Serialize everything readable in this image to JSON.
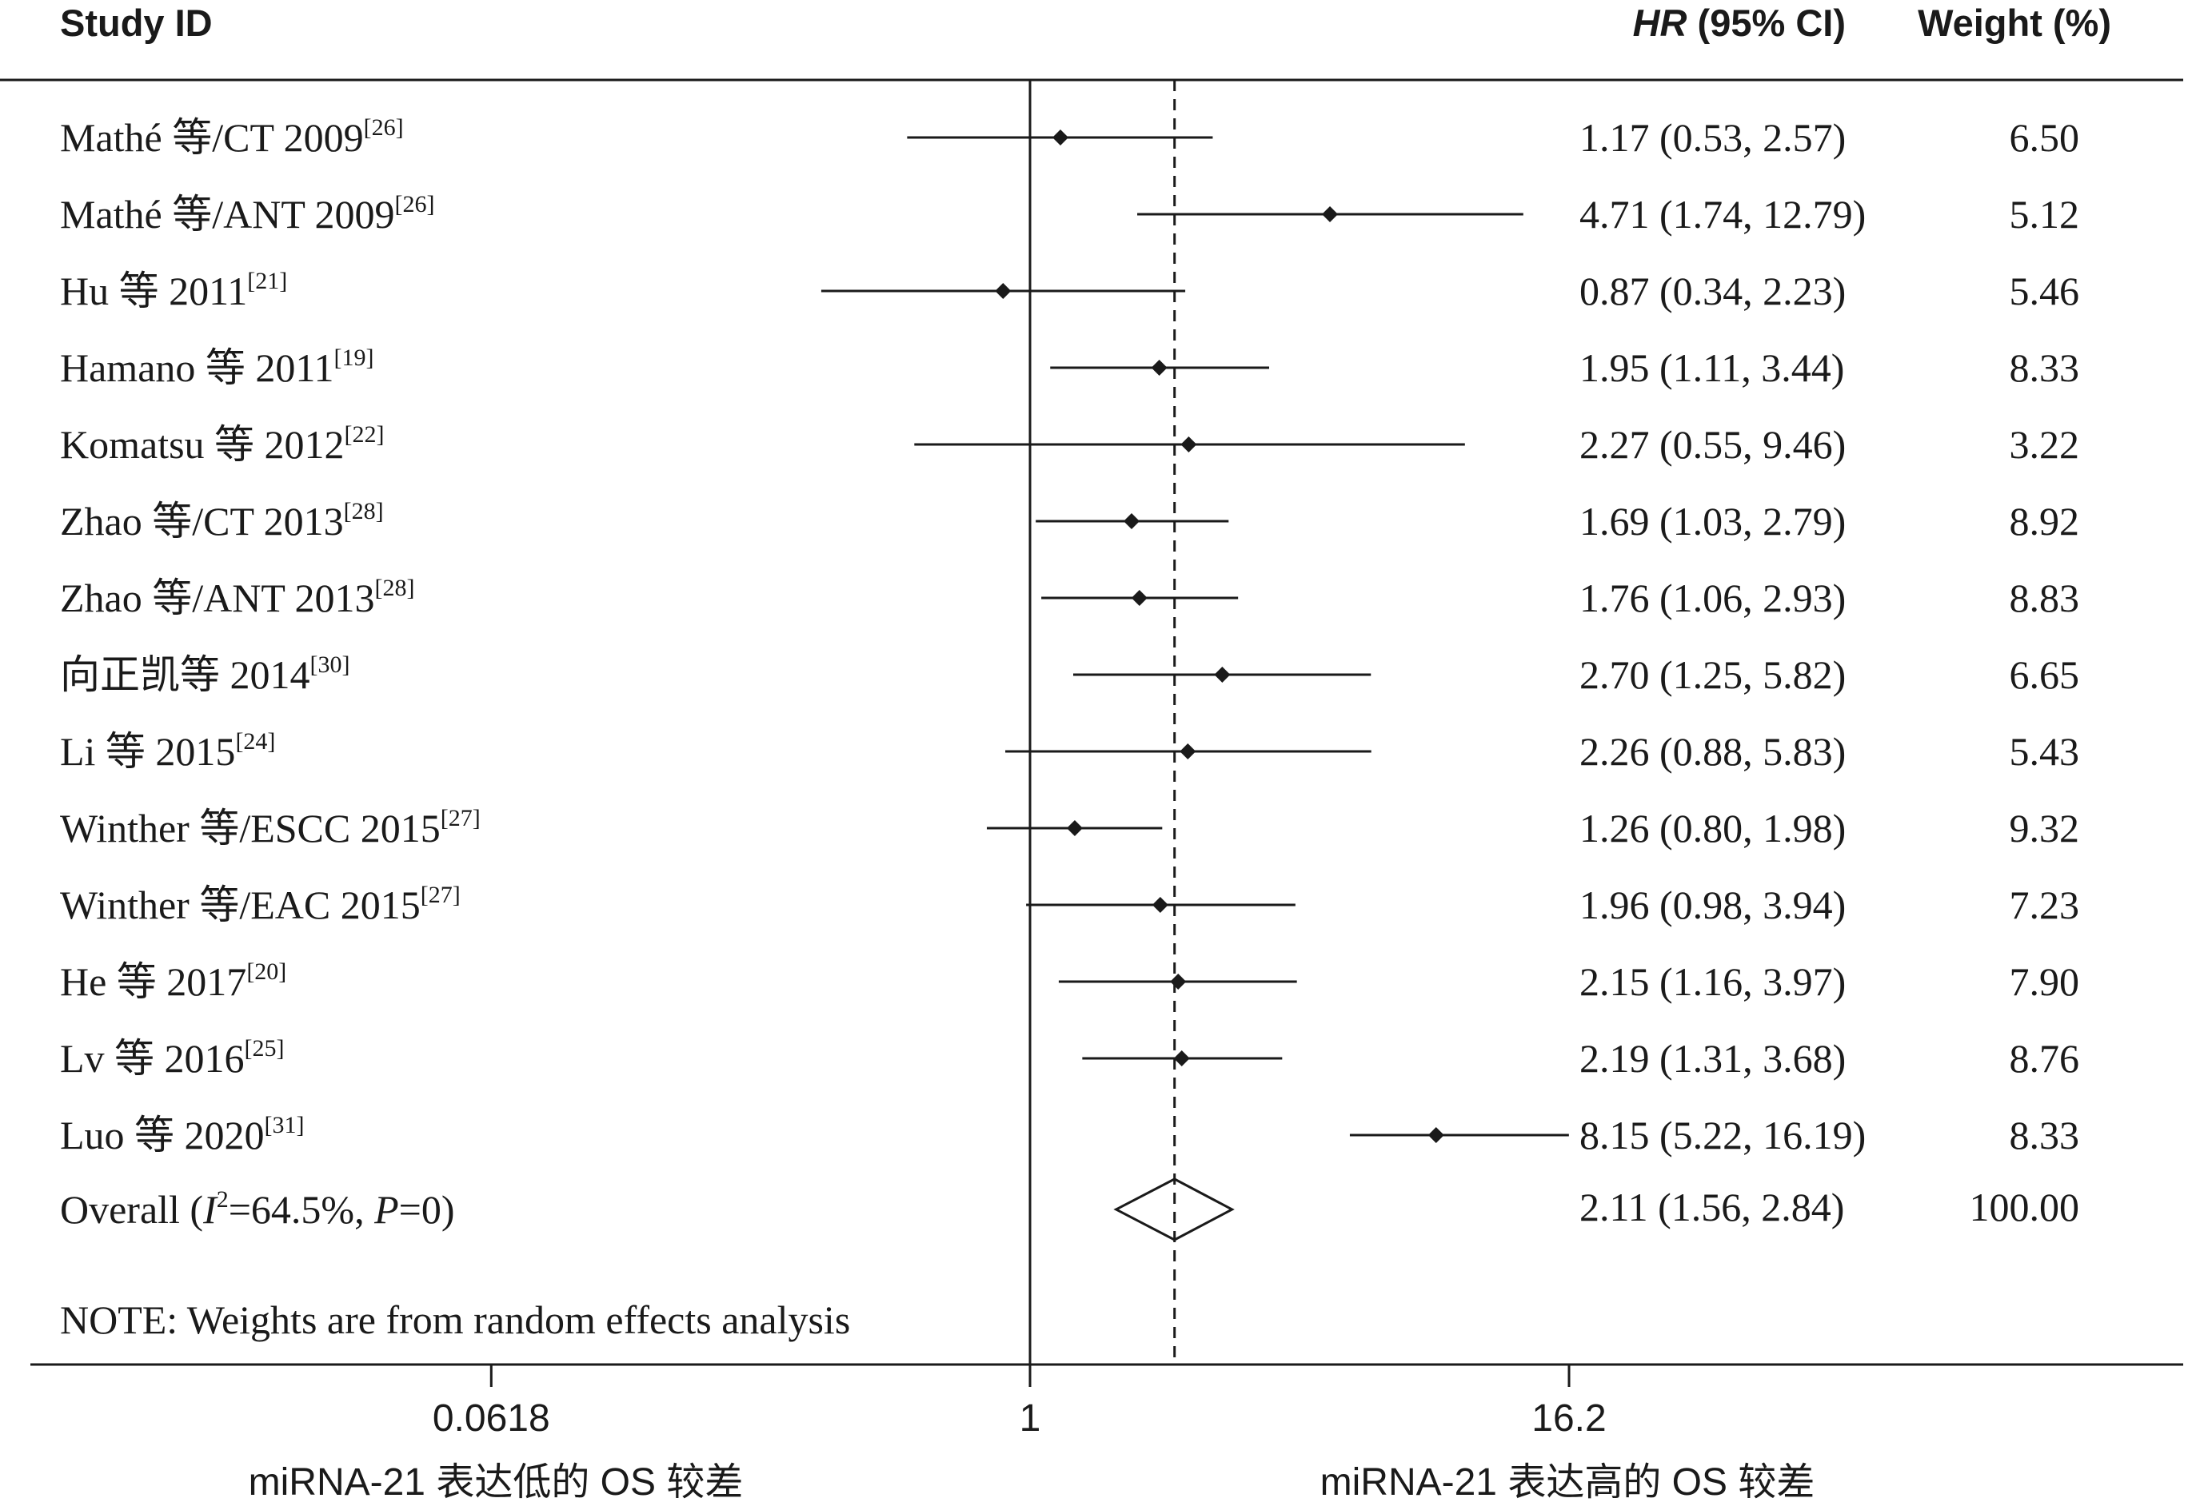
{
  "header": {
    "study_id": "Study ID",
    "hr_label_italic": "HR",
    "hr_label_rest": " (95% CI)",
    "weight_label": "Weight (%)"
  },
  "chart_data": {
    "type": "forest",
    "x_scale": "log",
    "x_ticks": [
      {
        "value": 0.0618,
        "label": "0.0618"
      },
      {
        "value": 1,
        "label": "1"
      },
      {
        "value": 16.2,
        "label": "16.2"
      }
    ],
    "null_line": 1,
    "studies": [
      {
        "name": "Mathé 等/CT 2009",
        "ref": "[26]",
        "hr": 1.17,
        "lo": 0.53,
        "hi": 2.57,
        "hr_text": "1.17 (0.53, 2.57)",
        "weight": "6.50"
      },
      {
        "name": "Mathé 等/ANT 2009",
        "ref": "[26]",
        "hr": 4.71,
        "lo": 1.74,
        "hi": 12.79,
        "hr_text": "4.71 (1.74, 12.79)",
        "weight": "5.12"
      },
      {
        "name": "Hu 等 2011",
        "ref": "[21]",
        "hr": 0.87,
        "lo": 0.34,
        "hi": 2.23,
        "hr_text": "0.87 (0.34, 2.23)",
        "weight": "5.46"
      },
      {
        "name": "Hamano 等 2011",
        "ref": "[19]",
        "hr": 1.95,
        "lo": 1.11,
        "hi": 3.44,
        "hr_text": "1.95 (1.11, 3.44)",
        "weight": "8.33"
      },
      {
        "name": "Komatsu 等 2012",
        "ref": "[22]",
        "hr": 2.27,
        "lo": 0.55,
        "hi": 9.46,
        "hr_text": "2.27 (0.55, 9.46)",
        "weight": "3.22"
      },
      {
        "name": "Zhao 等/CT 2013",
        "ref": "[28]",
        "hr": 1.69,
        "lo": 1.03,
        "hi": 2.79,
        "hr_text": "1.69 (1.03, 2.79)",
        "weight": "8.92"
      },
      {
        "name": "Zhao 等/ANT 2013",
        "ref": "[28]",
        "hr": 1.76,
        "lo": 1.06,
        "hi": 2.93,
        "hr_text": "1.76 (1.06, 2.93)",
        "weight": "8.83"
      },
      {
        "name": "向正凯等 2014",
        "ref": "[30]",
        "hr": 2.7,
        "lo": 1.25,
        "hi": 5.82,
        "hr_text": "2.70 (1.25, 5.82)",
        "weight": "6.65"
      },
      {
        "name": "Li 等 2015",
        "ref": "[24]",
        "hr": 2.26,
        "lo": 0.88,
        "hi": 5.83,
        "hr_text": "2.26 (0.88, 5.83)",
        "weight": "5.43"
      },
      {
        "name": "Winther 等/ESCC 2015",
        "ref": "[27]",
        "hr": 1.26,
        "lo": 0.8,
        "hi": 1.98,
        "hr_text": "1.26 (0.80, 1.98)",
        "weight": "9.32"
      },
      {
        "name": "Winther 等/EAC 2015",
        "ref": "[27]",
        "hr": 1.96,
        "lo": 0.98,
        "hi": 3.94,
        "hr_text": "1.96 (0.98, 3.94)",
        "weight": "7.23"
      },
      {
        "name": "He 等 2017",
        "ref": "[20]",
        "hr": 2.15,
        "lo": 1.16,
        "hi": 3.97,
        "hr_text": "2.15 (1.16, 3.97)",
        "weight": "7.90"
      },
      {
        "name": "Lv 等 2016",
        "ref": "[25]",
        "hr": 2.19,
        "lo": 1.31,
        "hi": 3.68,
        "hr_text": "2.19 (1.31, 3.68)",
        "weight": "8.76"
      },
      {
        "name": "Luo 等 2020",
        "ref": "[31]",
        "hr": 8.15,
        "lo": 5.22,
        "hi": 16.19,
        "hr_text": "8.15 (5.22, 16.19)",
        "weight": "8.33"
      }
    ],
    "overall": {
      "label_prefix": "Overall (",
      "i_sq_symbol": "I",
      "i_sq_sup": "2",
      "i_sq_value": "=64.5%, ",
      "p_symbol": "P",
      "p_value": "=0)",
      "hr": 2.11,
      "lo": 1.56,
      "hi": 2.84,
      "hr_text": "2.11 (1.56, 2.84)",
      "weight": "100.00"
    },
    "note": "NOTE: Weights are from random effects analysis",
    "xlabel_left": "miRNA-21 表达低的 OS 较差",
    "xlabel_right": "miRNA-21 表达高的 OS 较差"
  }
}
